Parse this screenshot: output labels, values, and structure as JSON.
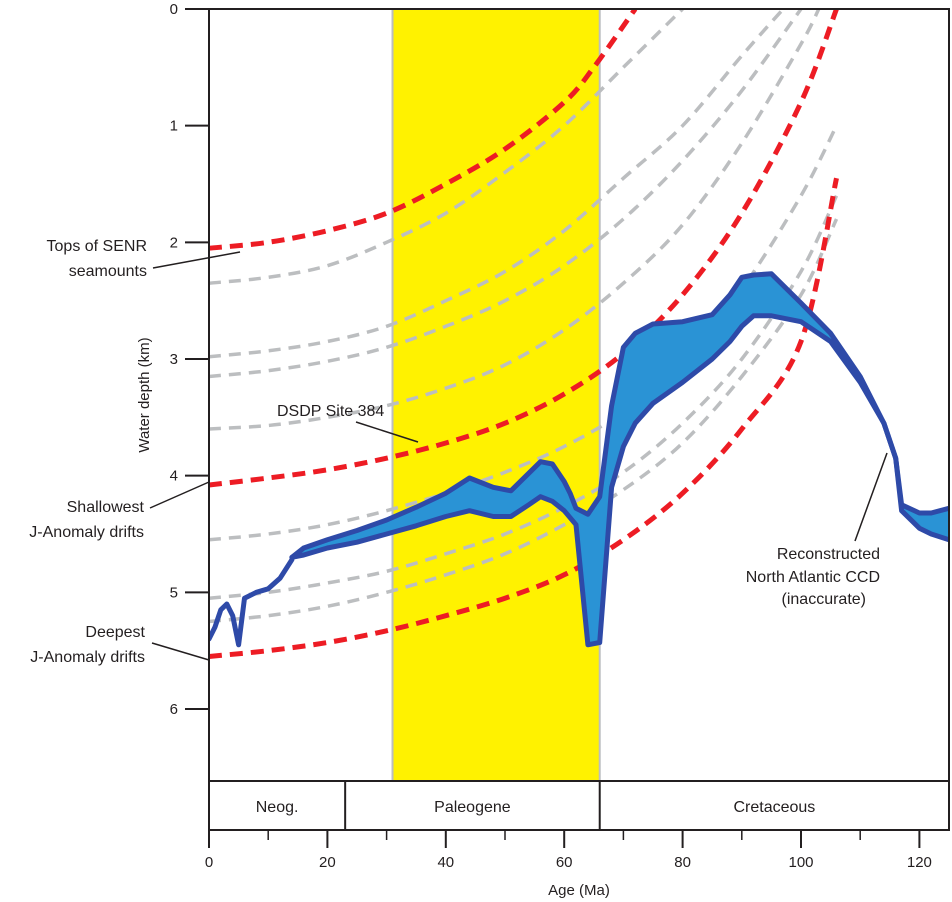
{
  "chart_data": {
    "type": "line",
    "xlabel": "Age (Ma)",
    "ylabel": "Water depth (km)",
    "xlim": [
      0,
      125
    ],
    "ylim": [
      0,
      6.6
    ],
    "y_inverted": true,
    "x_ticks": [
      "0",
      "20",
      "40",
      "60",
      "80",
      "100",
      "120"
    ],
    "y_ticks": [
      "0",
      "1",
      "2",
      "3",
      "4",
      "5",
      "6"
    ],
    "grid": false,
    "highlight_band": {
      "x_from": 31,
      "x_to": 66,
      "color": "#fff200"
    },
    "periods": [
      {
        "label": "Neog.",
        "from": 0,
        "to": 23
      },
      {
        "label": "Paleogene",
        "from": 23,
        "to": 66
      },
      {
        "label": "Cretaceous",
        "from": 66,
        "to": 125
      }
    ],
    "colors": {
      "red_curves": "#ed1c24",
      "gray_curves": "#bcbec0",
      "ccd_fill": "#2a93d5",
      "ccd_outline": "#2e4aa8",
      "band": "#fff200"
    },
    "subsidence_curves": [
      {
        "style": "red",
        "x": [
          0,
          10,
          20,
          30,
          40,
          50,
          60,
          65,
          72
        ],
        "y": [
          2.05,
          2.0,
          1.9,
          1.75,
          1.5,
          1.2,
          0.8,
          0.5,
          0.0
        ]
      },
      {
        "style": "gray",
        "x": [
          0,
          10,
          20,
          30,
          40,
          50,
          60,
          70,
          80
        ],
        "y": [
          2.35,
          2.3,
          2.2,
          2.0,
          1.75,
          1.4,
          1.0,
          0.5,
          0.0
        ]
      },
      {
        "style": "gray",
        "x": [
          0,
          10,
          20,
          30,
          40,
          50,
          60,
          70,
          80,
          90,
          97
        ],
        "y": [
          2.98,
          2.93,
          2.85,
          2.72,
          2.5,
          2.25,
          1.9,
          1.45,
          1.0,
          0.4,
          0.0
        ]
      },
      {
        "style": "gray",
        "x": [
          0,
          10,
          20,
          30,
          40,
          50,
          60,
          70,
          80,
          90,
          100
        ],
        "y": [
          3.15,
          3.1,
          3.02,
          2.9,
          2.72,
          2.5,
          2.2,
          1.8,
          1.3,
          0.7,
          0.0
        ]
      },
      {
        "style": "gray",
        "x": [
          0,
          10,
          20,
          30,
          40,
          50,
          60,
          70,
          80,
          90,
          100,
          103
        ],
        "y": [
          3.6,
          3.57,
          3.5,
          3.4,
          3.25,
          3.05,
          2.75,
          2.35,
          1.85,
          1.15,
          0.3,
          0.0
        ]
      },
      {
        "style": "red",
        "x": [
          0,
          10,
          20,
          30,
          40,
          50,
          60,
          70,
          80,
          90,
          100,
          106
        ],
        "y": [
          4.08,
          4.02,
          3.95,
          3.85,
          3.72,
          3.55,
          3.3,
          2.95,
          2.45,
          1.75,
          0.8,
          0.0
        ]
      },
      {
        "style": "gray",
        "x": [
          0,
          10,
          20,
          30,
          40,
          50,
          60,
          70,
          80,
          90,
          100,
          106
        ],
        "y": [
          4.55,
          4.5,
          4.42,
          4.3,
          4.15,
          3.97,
          3.75,
          3.45,
          3.0,
          2.4,
          1.6,
          1.0
        ]
      },
      {
        "style": "gray",
        "x": [
          0,
          10,
          20,
          30,
          40,
          50,
          60,
          70,
          80,
          90,
          100,
          106
        ],
        "y": [
          5.05,
          5.0,
          4.92,
          4.82,
          4.67,
          4.5,
          4.27,
          3.97,
          3.55,
          3.0,
          2.25,
          1.6
        ]
      },
      {
        "style": "gray",
        "x": [
          0,
          10,
          20,
          30,
          40,
          50,
          60,
          70,
          80,
          90,
          100,
          106
        ],
        "y": [
          5.25,
          5.2,
          5.12,
          5.0,
          4.85,
          4.67,
          4.42,
          4.12,
          3.72,
          3.15,
          2.45,
          1.8
        ]
      },
      {
        "style": "red",
        "x": [
          0,
          10,
          20,
          30,
          40,
          50,
          60,
          70,
          80,
          90,
          100,
          106
        ],
        "y": [
          5.55,
          5.5,
          5.43,
          5.33,
          5.2,
          5.05,
          4.85,
          4.55,
          4.15,
          3.6,
          2.85,
          1.45
        ]
      }
    ],
    "ccd_band": {
      "upper": {
        "x": [
          14,
          16,
          20,
          25,
          30,
          35,
          40,
          44,
          48,
          51,
          54,
          56,
          58,
          60,
          61,
          62,
          64,
          66,
          68,
          70,
          72,
          75,
          80,
          85,
          88,
          90,
          92,
          95,
          100,
          105,
          110,
          114,
          116,
          117,
          120,
          122,
          125
        ],
        "y": [
          4.7,
          4.62,
          4.55,
          4.47,
          4.38,
          4.27,
          4.15,
          4.02,
          4.1,
          4.13,
          3.98,
          3.88,
          3.9,
          4.05,
          4.15,
          4.28,
          4.33,
          4.18,
          3.4,
          2.9,
          2.78,
          2.7,
          2.68,
          2.62,
          2.45,
          2.3,
          2.28,
          2.27,
          2.52,
          2.78,
          3.15,
          3.55,
          3.85,
          4.25,
          4.32,
          4.32,
          4.28
        ]
      },
      "lower": {
        "x": [
          14,
          16,
          20,
          25,
          30,
          35,
          40,
          44,
          48,
          51,
          54,
          56,
          58,
          60,
          61,
          62,
          64,
          66,
          68,
          70,
          72,
          75,
          80,
          85,
          88,
          90,
          92,
          95,
          100,
          105,
          110,
          114,
          116,
          117,
          120,
          122,
          125
        ],
        "y": [
          4.7,
          4.68,
          4.62,
          4.57,
          4.5,
          4.43,
          4.35,
          4.3,
          4.35,
          4.35,
          4.25,
          4.18,
          4.22,
          4.3,
          4.36,
          4.42,
          5.45,
          5.43,
          4.1,
          3.75,
          3.55,
          3.38,
          3.2,
          3.0,
          2.85,
          2.72,
          2.63,
          2.63,
          2.68,
          2.85,
          3.2,
          3.55,
          3.85,
          4.3,
          4.45,
          4.5,
          4.55
        ]
      },
      "young_segment": {
        "x": [
          0,
          1,
          2,
          3,
          4,
          5,
          6,
          8,
          10,
          12,
          14
        ],
        "y": [
          5.4,
          5.3,
          5.15,
          5.1,
          5.2,
          5.45,
          5.05,
          5.0,
          4.97,
          4.88,
          4.72
        ]
      }
    },
    "annotations": [
      {
        "text_lines": [
          "Tops of SENR",
          "seamounts"
        ]
      },
      {
        "text_lines": [
          "DSDP Site 384"
        ]
      },
      {
        "text_lines": [
          "Shallowest",
          "J-Anomaly drifts"
        ]
      },
      {
        "text_lines": [
          "Deepest",
          "J-Anomaly drifts"
        ]
      },
      {
        "text_lines": [
          "Reconstructed",
          "North Atlantic CCD",
          "(inaccurate)"
        ]
      }
    ]
  }
}
